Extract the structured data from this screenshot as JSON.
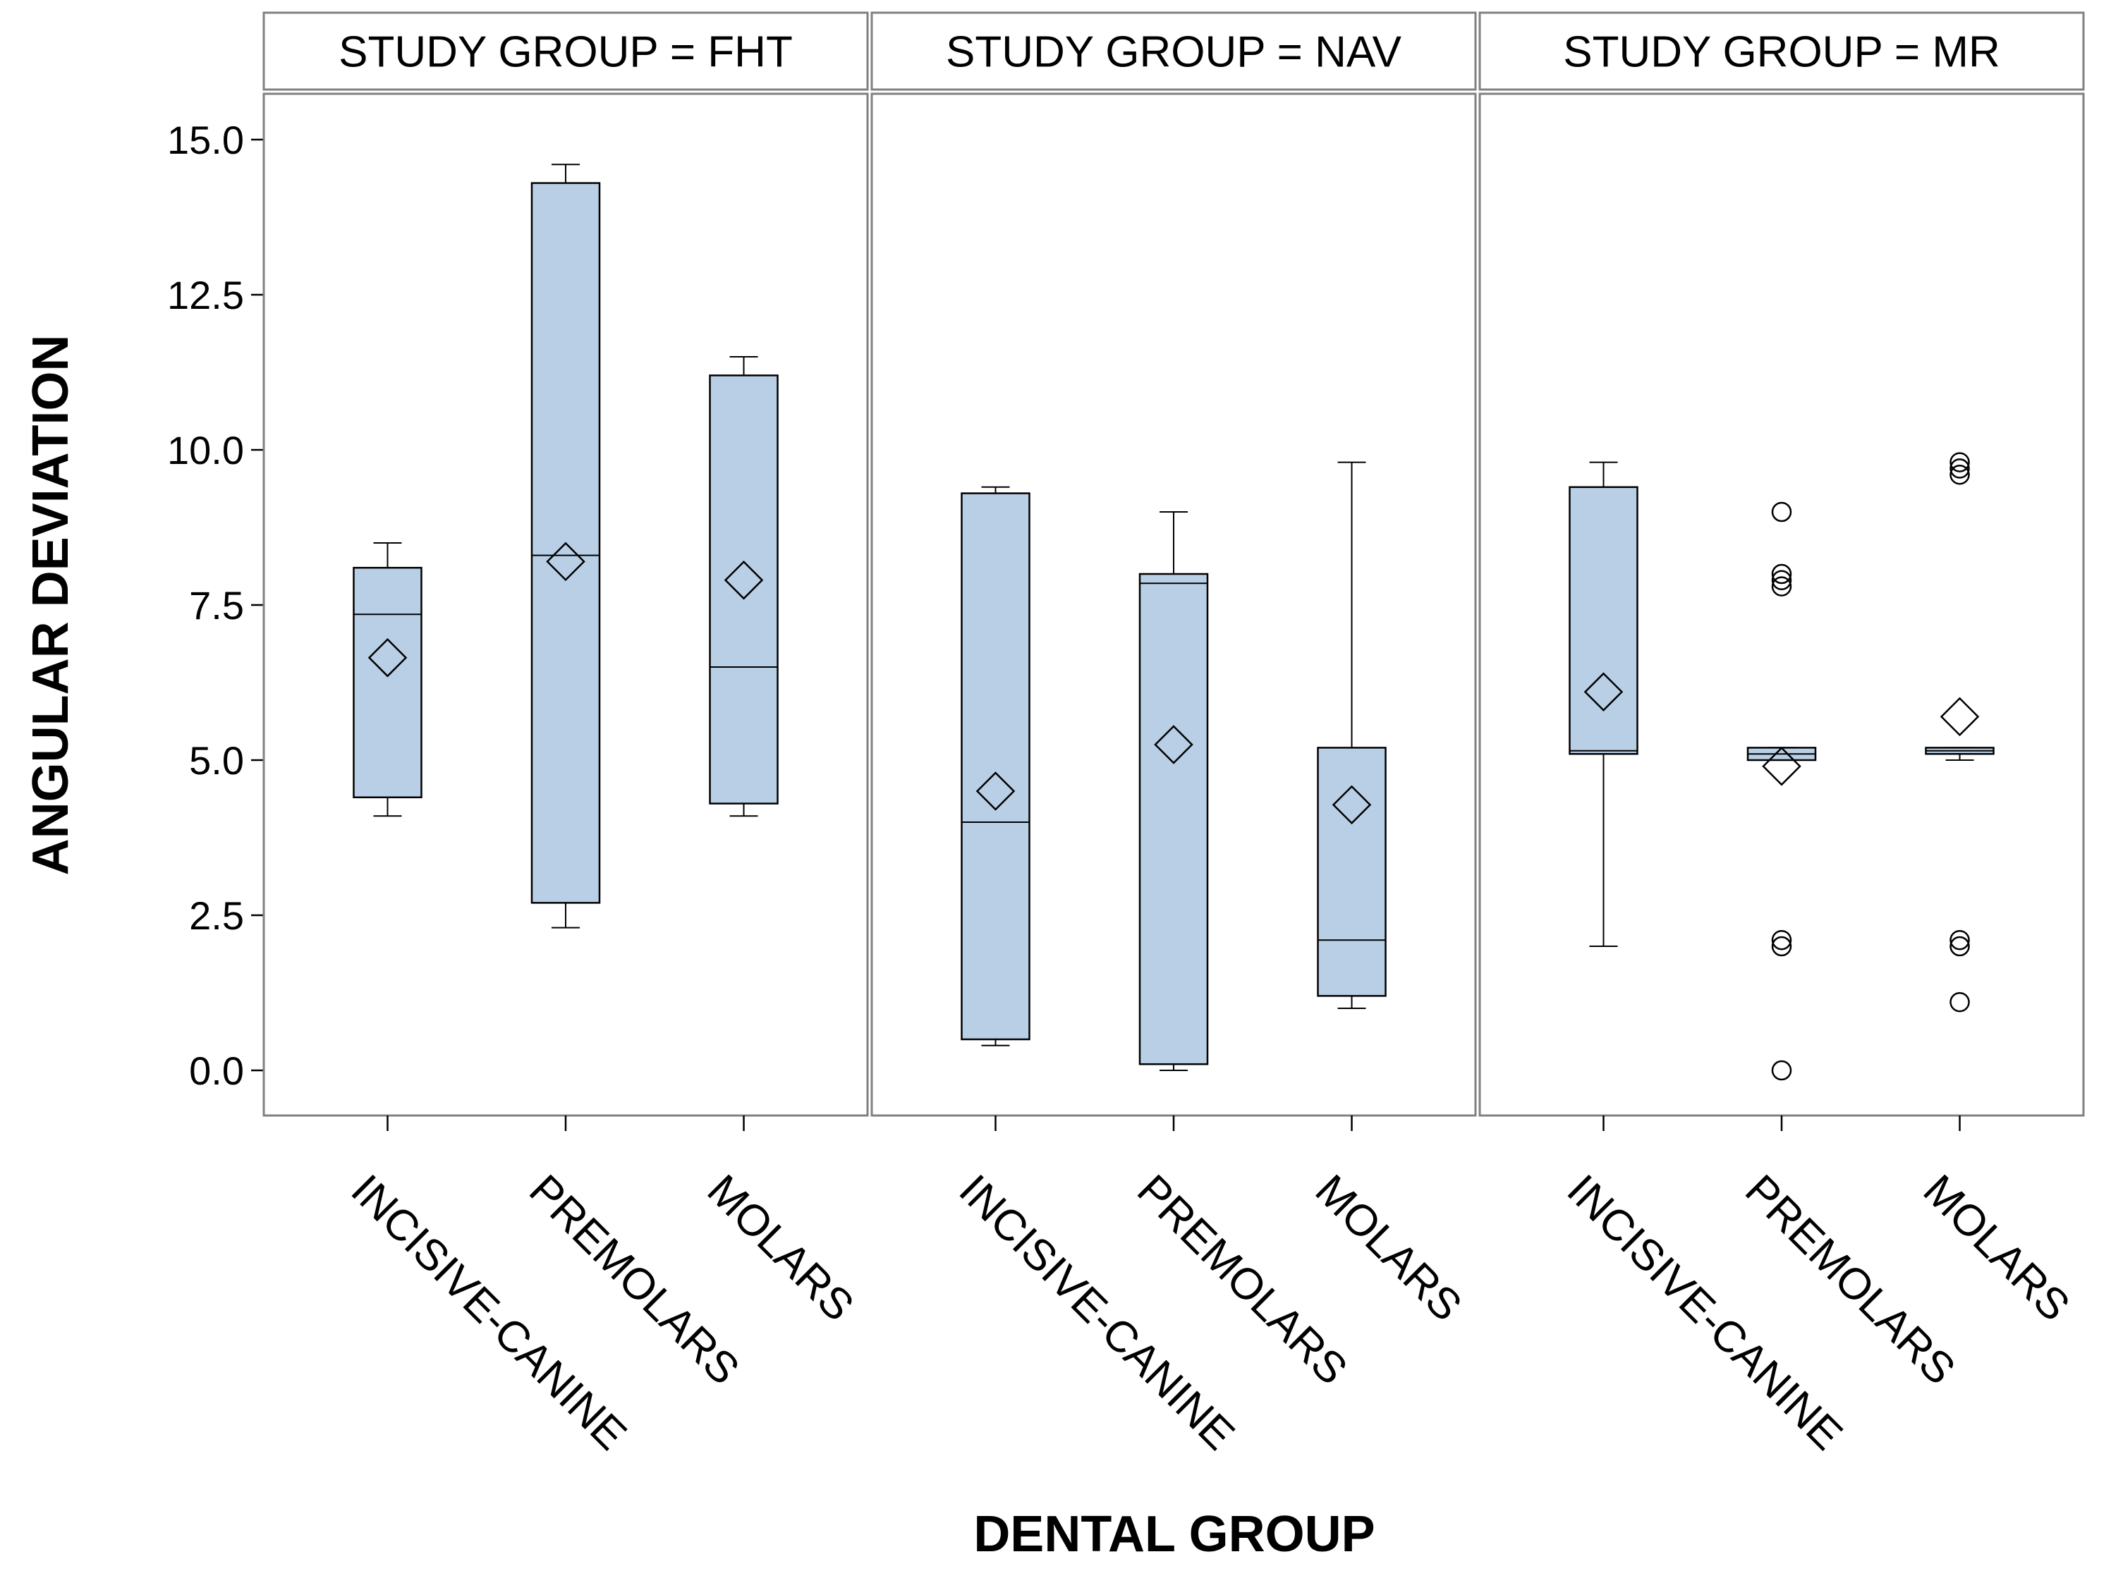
{
  "chart_data": {
    "type": "boxplot",
    "xlabel": "DENTAL GROUP",
    "ylabel": "ANGULAR DEVIATION",
    "ylim": [
      -0.7,
      15.6
    ],
    "yticks": [
      "0.0",
      "2.5",
      "5.0",
      "7.5",
      "10.0",
      "12.5",
      "15.0"
    ],
    "ytick_values": [
      0,
      2.5,
      5,
      7.5,
      10,
      12.5,
      15
    ],
    "categories": [
      "INCISIVE-CANINE",
      "PREMOLARS",
      "MOLARS"
    ],
    "colors": {
      "box_fill": "#b9cfe6",
      "box_stroke": "#000000",
      "frame": "#808080"
    },
    "panels": [
      {
        "title": "STUDY GROUP = FHT",
        "boxes": [
          {
            "category": "INCISIVE-CANINE",
            "min": 4.1,
            "q1": 4.4,
            "median": 7.35,
            "q3": 8.1,
            "max": 8.5,
            "mean": 6.65,
            "outliers": []
          },
          {
            "category": "PREMOLARS",
            "min": 2.3,
            "q1": 2.7,
            "median": 8.3,
            "q3": 14.3,
            "max": 14.6,
            "mean": 8.2,
            "outliers": []
          },
          {
            "category": "MOLARS",
            "min": 4.1,
            "q1": 4.3,
            "median": 6.5,
            "q3": 11.2,
            "max": 11.5,
            "mean": 7.9,
            "outliers": []
          }
        ]
      },
      {
        "title": "STUDY GROUP = NAV",
        "boxes": [
          {
            "category": "INCISIVE-CANINE",
            "min": 0.4,
            "q1": 0.5,
            "median": 4.0,
            "q3": 9.3,
            "max": 9.4,
            "mean": 4.5,
            "outliers": []
          },
          {
            "category": "PREMOLARS",
            "min": 0.0,
            "q1": 0.1,
            "median": 7.85,
            "q3": 8.0,
            "max": 9.0,
            "mean": 5.25,
            "outliers": []
          },
          {
            "category": "MOLARS",
            "min": 1.0,
            "q1": 1.2,
            "median": 2.1,
            "q3": 5.2,
            "max": 9.8,
            "mean": 4.28,
            "outliers": []
          }
        ]
      },
      {
        "title": "STUDY GROUP = MR",
        "boxes": [
          {
            "category": "INCISIVE-CANINE",
            "min": 2.0,
            "q1": 5.1,
            "median": 5.15,
            "q3": 9.4,
            "max": 9.8,
            "mean": 6.1,
            "outliers": []
          },
          {
            "category": "PREMOLARS",
            "min": 5.0,
            "q1": 5.0,
            "median": 5.1,
            "q3": 5.2,
            "max": 5.2,
            "mean": 4.9,
            "outliers": [
              9.0,
              8.0,
              7.9,
              7.8,
              2.1,
              2.0,
              0.0
            ]
          },
          {
            "category": "MOLARS",
            "min": 5.0,
            "q1": 5.1,
            "median": 5.15,
            "q3": 5.2,
            "max": 5.2,
            "mean": 5.7,
            "outliers": [
              9.8,
              9.7,
              9.6,
              2.1,
              2.0,
              1.1
            ]
          }
        ]
      }
    ]
  }
}
